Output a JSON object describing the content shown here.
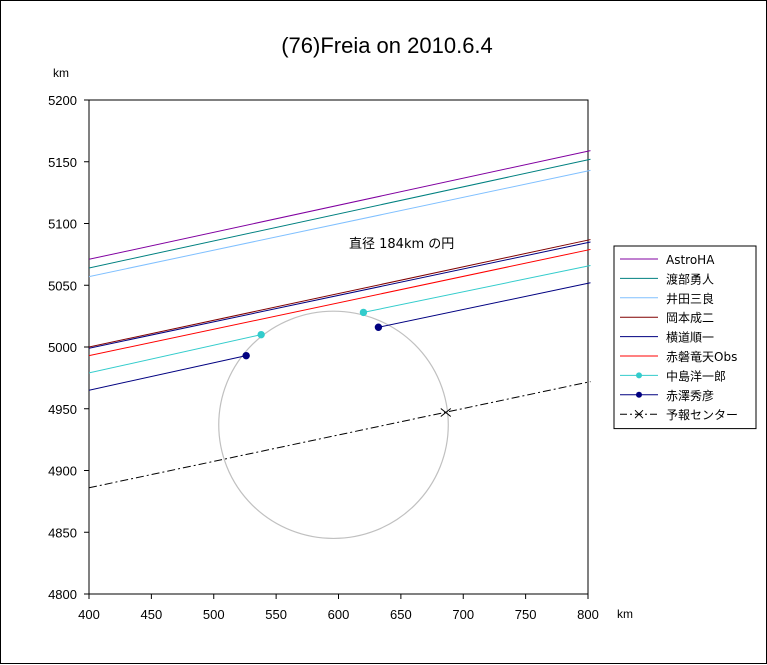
{
  "chart_data": {
    "type": "line",
    "title": "(76)Freia on 2010.6.4",
    "xlabel": "km",
    "ylabel": "km",
    "xlim": [
      400,
      800
    ],
    "ylim": [
      4800,
      5200
    ],
    "x_ticks": [
      "400",
      "450",
      "500",
      "550",
      "600",
      "650",
      "700",
      "750",
      "800"
    ],
    "y_ticks": [
      "5200",
      "5150",
      "5100",
      "5050",
      "5000",
      "4950",
      "4900",
      "4850",
      "4800"
    ],
    "grid": false,
    "legend_position": "right",
    "annotation": "直径 184km の円",
    "circle": {
      "center": [
        596,
        4937
      ],
      "diameter_km": 184,
      "color": "#c0c0c0"
    },
    "series": [
      {
        "name": "AstroHA",
        "color": "#8000a0",
        "style": "solid",
        "x": [
          400,
          802
        ],
        "y": [
          5071,
          5159
        ]
      },
      {
        "name": "渡部勇人",
        "color": "#008080",
        "style": "solid",
        "x": [
          400,
          802
        ],
        "y": [
          5064,
          5152
        ]
      },
      {
        "name": "井田三良",
        "color": "#80c0ff",
        "style": "solid",
        "x": [
          400,
          802
        ],
        "y": [
          5057,
          5143
        ]
      },
      {
        "name": "岡本成二",
        "color": "#800000",
        "style": "solid",
        "x": [
          400,
          802
        ],
        "y": [
          5000,
          5087
        ]
      },
      {
        "name": "横道順一",
        "color": "#000080",
        "style": "solid",
        "x": [
          400,
          802
        ],
        "y": [
          4999,
          5085
        ]
      },
      {
        "name": "赤磐竜天Obs",
        "color": "#ff0000",
        "style": "solid",
        "x": [
          400,
          802
        ],
        "y": [
          4993,
          5079
        ]
      },
      {
        "name": "中島洋一郎",
        "color": "#33cccc",
        "style": "marker",
        "segments": [
          {
            "x": [
              400,
              538
            ],
            "y": [
              4979,
              5010
            ]
          },
          {
            "x": [
              620,
              802
            ],
            "y": [
              5028,
              5066
            ]
          }
        ]
      },
      {
        "name": "赤澤秀彦",
        "color": "#000080",
        "style": "marker",
        "segments": [
          {
            "x": [
              400,
              526
            ],
            "y": [
              4965,
              4993
            ]
          },
          {
            "x": [
              632,
              802
            ],
            "y": [
              5016,
              5052
            ]
          }
        ]
      },
      {
        "name": "予報センター",
        "color": "#000000",
        "style": "dashdot",
        "x": [
          400,
          802
        ],
        "y": [
          4886,
          4972
        ],
        "marker_point": [
          686,
          4947
        ]
      }
    ]
  }
}
